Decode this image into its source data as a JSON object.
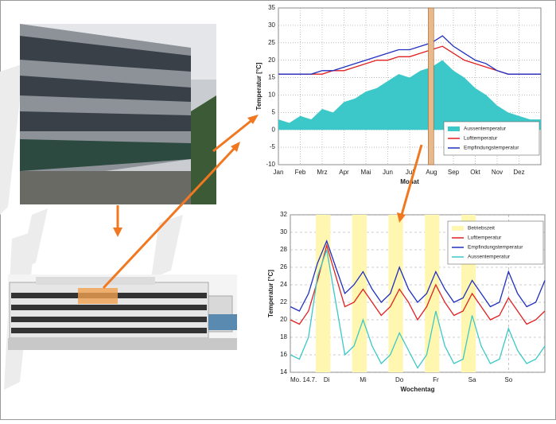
{
  "chart_data": [
    {
      "type": "line",
      "y_label": "Temperatur [°C]",
      "x_label": "Monat",
      "x": [
        0,
        0.5,
        1,
        1.5,
        2,
        2.5,
        3,
        3.5,
        4,
        4.5,
        5,
        5.5,
        6,
        6.5,
        7,
        7.5,
        8,
        8.5,
        9,
        9.5,
        10,
        10.5,
        11,
        11.5,
        12
      ],
      "series": [
        {
          "name": "Aussentemperatur",
          "color": "#3cc8c8",
          "style": "area",
          "values": [
            3,
            2,
            4,
            3,
            6,
            5,
            8,
            9,
            11,
            12,
            14,
            16,
            15,
            17,
            18,
            20,
            17,
            15,
            12,
            10,
            7,
            5,
            4,
            3,
            3
          ]
        },
        {
          "name": "Lufttemperatur",
          "color": "#e02020",
          "style": "line",
          "values": [
            16,
            16,
            16,
            16,
            16,
            17,
            17,
            18,
            19,
            20,
            20,
            21,
            21,
            22,
            23,
            24,
            22,
            20,
            19,
            18,
            17,
            16,
            16,
            16,
            16
          ]
        },
        {
          "name": "Empfindungstemperatur",
          "color": "#2030c0",
          "style": "line",
          "values": [
            16,
            16,
            16,
            16,
            17,
            17,
            18,
            19,
            20,
            21,
            22,
            23,
            23,
            24,
            25,
            27,
            24,
            22,
            20,
            19,
            17,
            16,
            16,
            16,
            16
          ]
        }
      ],
      "highlight_range": [
        6.85,
        7.1
      ],
      "highlight_color": "#e8b98a",
      "xlim": [
        0,
        12
      ],
      "xticks": [
        {
          "value": 0,
          "label": "Jan"
        },
        {
          "value": 1,
          "label": "Feb"
        },
        {
          "value": 2,
          "label": "Mrz"
        },
        {
          "value": 3,
          "label": "Apr"
        },
        {
          "value": 4,
          "label": "Mai"
        },
        {
          "value": 5,
          "label": "Jun"
        },
        {
          "value": 6,
          "label": "Jul"
        },
        {
          "value": 7,
          "label": "Aug"
        },
        {
          "value": 8,
          "label": "Sep"
        },
        {
          "value": 9,
          "label": "Okt"
        },
        {
          "value": 10,
          "label": "Nov"
        },
        {
          "value": 11,
          "label": "Dez"
        }
      ],
      "ylim": [
        -10,
        35
      ],
      "yticks": [
        -10,
        -5,
        0,
        5,
        10,
        15,
        20,
        25,
        30,
        35
      ],
      "grid": "dotted",
      "legend": "lower-right"
    },
    {
      "type": "line",
      "y_label": "Temperatur [°C]",
      "x_label": "Wochentag",
      "x": [
        0,
        0.25,
        0.5,
        0.75,
        1,
        1.25,
        1.5,
        1.75,
        2,
        2.25,
        2.5,
        2.75,
        3,
        3.25,
        3.5,
        3.75,
        4,
        4.25,
        4.5,
        4.75,
        5,
        5.25,
        5.5,
        5.75,
        6,
        6.25,
        6.5,
        6.75,
        7
      ],
      "series": [
        {
          "name": "Betriebszeit",
          "color": "#fff7b0",
          "style": "bands",
          "bands": [
            [
              0.7,
              1.1
            ],
            [
              1.7,
              2.1
            ],
            [
              2.7,
              3.1
            ],
            [
              3.7,
              4.1
            ],
            [
              4.7,
              5.1
            ]
          ]
        },
        {
          "name": "Lufttemperatur",
          "color": "#e02020",
          "style": "line",
          "values": [
            20,
            19.5,
            21,
            24.5,
            28.5,
            25,
            21.5,
            22,
            23.5,
            22,
            20.5,
            21.5,
            23.5,
            22,
            20,
            21.5,
            24,
            22,
            20.5,
            21,
            23,
            21.5,
            20,
            20.5,
            22.5,
            21,
            19.5,
            20,
            21
          ]
        },
        {
          "name": "Empfindungstemperatur",
          "color": "#2030c0",
          "style": "line",
          "values": [
            21.5,
            21,
            23,
            26.5,
            29,
            26,
            23,
            24,
            25.5,
            23.5,
            22,
            23,
            26,
            23.5,
            22,
            23,
            25.5,
            23.5,
            22,
            22.5,
            24.5,
            23,
            21.5,
            22,
            25.5,
            23,
            21.5,
            22,
            24.5
          ]
        },
        {
          "name": "Aussentemperatur",
          "color": "#3cc8c8",
          "style": "line",
          "values": [
            16,
            15.5,
            18,
            25,
            28,
            22,
            16,
            17,
            20,
            17,
            15,
            16,
            18.5,
            16.5,
            14.5,
            16,
            21,
            17,
            15,
            15.5,
            20.5,
            17,
            15,
            15.5,
            19,
            16.5,
            15,
            15.5,
            17
          ]
        }
      ],
      "xlim": [
        0,
        7
      ],
      "xticks": [
        {
          "value": 0,
          "label": "Mo. 14.7."
        },
        {
          "value": 1,
          "label": "Di"
        },
        {
          "value": 2,
          "label": "Mi"
        },
        {
          "value": 3,
          "label": "Do"
        },
        {
          "value": 4,
          "label": "Fr"
        },
        {
          "value": 5,
          "label": "Sa"
        },
        {
          "value": 6,
          "label": "So"
        }
      ],
      "ylim": [
        14,
        32
      ],
      "yticks": [
        14,
        16,
        18,
        20,
        22,
        24,
        26,
        28,
        30,
        32
      ],
      "grid": "dashed",
      "legend": "upper-right"
    }
  ]
}
